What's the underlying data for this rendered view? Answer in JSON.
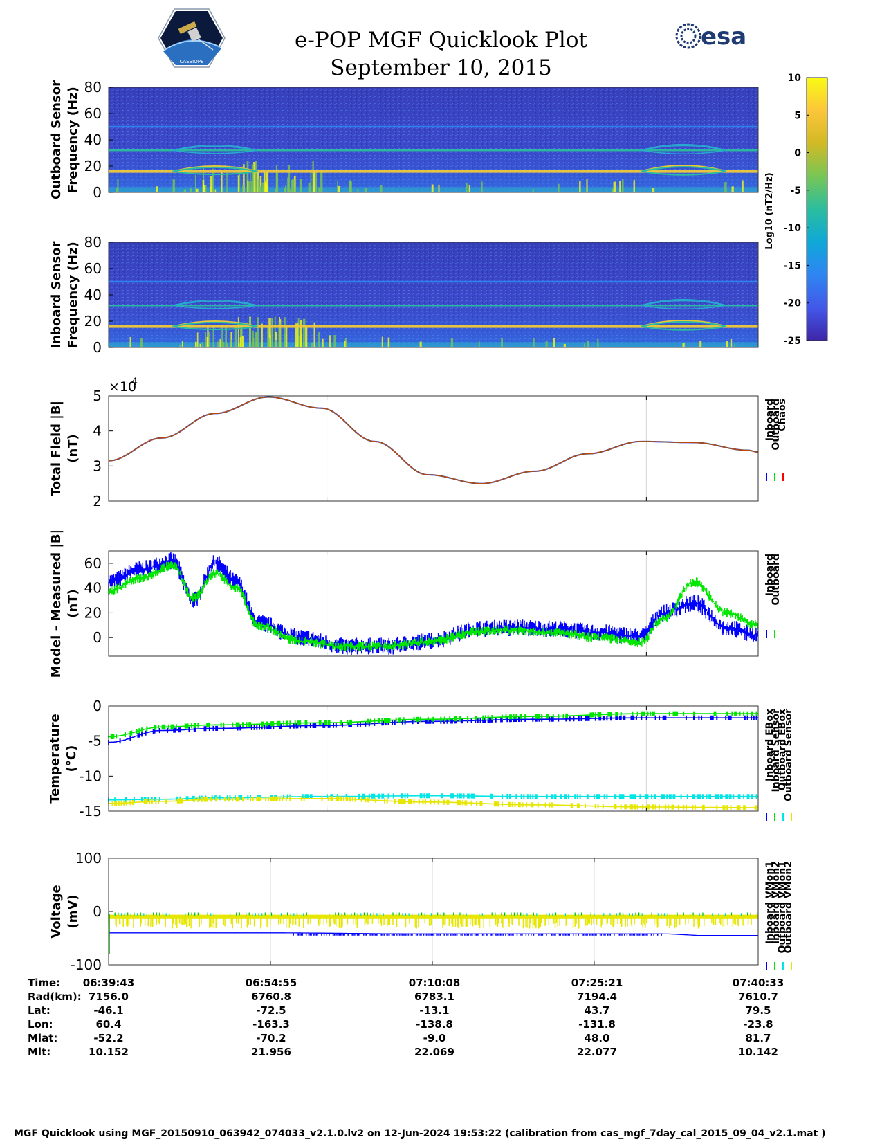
{
  "header": {
    "title": "e-POP MGF Quicklook Plot",
    "date": "September 10, 2015",
    "mission_logo_text": "CASSIOPE",
    "agency_logo_text": "esa"
  },
  "colorbar": {
    "label": "Log10 (nT2/Hz)",
    "ticks": [
      "10",
      "5",
      "0",
      "-5",
      "-10",
      "-15",
      "-20",
      "-25"
    ],
    "colormap": [
      "#3e26a8",
      "#4258e9",
      "#2f85f2",
      "#0fa8d8",
      "#2bbd9e",
      "#78c655",
      "#d1b925",
      "#fcc63a",
      "#f9fb14"
    ]
  },
  "chart_data": [
    {
      "type": "heatmap",
      "id": "outboard-spectrogram",
      "ylabel": "Outboard Sensor Frequency (Hz)",
      "ylim": [
        0,
        80
      ],
      "yticks": [
        "80",
        "60",
        "40",
        "20",
        "0"
      ],
      "zlim": [
        -25,
        10
      ],
      "bright_lines_hz": [
        16,
        32,
        50
      ]
    },
    {
      "type": "heatmap",
      "id": "inboard-spectrogram",
      "ylabel": "Inboard Sensor Frequency (Hz)",
      "ylim": [
        0,
        80
      ],
      "yticks": [
        "80",
        "60",
        "40",
        "20",
        "0"
      ],
      "zlim": [
        -25,
        10
      ],
      "bright_lines_hz": [
        16,
        32,
        50
      ]
    },
    {
      "type": "line",
      "id": "total-field",
      "ylabel": "Total Field |B| (nT)",
      "exponent": "×10",
      "exponent_power": "4",
      "ylim": [
        2,
        5
      ],
      "yticks": [
        "5",
        "4",
        "3",
        "2"
      ],
      "legend": [
        "Inboard",
        "Outboard",
        "Chaos"
      ],
      "legend_colors": [
        "#0000ff",
        "#00e600",
        "#ff0000"
      ],
      "x_minutes": [
        0,
        5,
        10,
        15,
        20,
        25,
        30,
        35,
        40,
        45,
        50,
        55,
        60,
        61
      ],
      "y": [
        3.15,
        3.8,
        4.5,
        4.97,
        4.65,
        3.7,
        2.75,
        2.5,
        2.85,
        3.35,
        3.7,
        3.67,
        3.45,
        3.4
      ]
    },
    {
      "type": "line",
      "id": "model-measured",
      "ylabel": "Model - Measured |B| (nT)",
      "ylim": [
        -15,
        70
      ],
      "yticks": [
        "60",
        "40",
        "20",
        "0"
      ],
      "legend": [
        "Inboard",
        "Outboard"
      ],
      "legend_colors": [
        "#0000ff",
        "#00e600"
      ],
      "x_minutes": [
        0,
        3,
        6,
        8,
        10,
        12,
        14,
        18,
        22,
        26,
        30,
        35,
        38,
        42,
        46,
        50,
        52,
        55,
        58,
        61
      ],
      "series": [
        {
          "name": "Inboard",
          "values": [
            45,
            55,
            62,
            30,
            60,
            45,
            12,
            0,
            -7,
            -7,
            -3,
            7,
            8,
            7,
            4,
            1,
            20,
            28,
            8,
            2
          ]
        },
        {
          "name": "Outboard",
          "values": [
            38,
            48,
            58,
            32,
            52,
            40,
            10,
            -3,
            -7,
            -7,
            -3,
            5,
            6,
            4,
            0,
            -4,
            15,
            45,
            20,
            10
          ]
        }
      ]
    },
    {
      "type": "line",
      "id": "temperature",
      "ylabel": "Temperature (°C)",
      "ylim": [
        -15,
        0
      ],
      "yticks": [
        "0",
        "-5",
        "-10",
        "-15"
      ],
      "legend": [
        "Inboard EBox",
        "Inboard Sensor",
        "Outboard EBox",
        "Outboard Sensor"
      ],
      "legend_colors": [
        "#0000ff",
        "#00e600",
        "#00e6e6",
        "#e6e600"
      ],
      "x_minutes": [
        0,
        5,
        10,
        20,
        30,
        40,
        50,
        61
      ],
      "series": [
        {
          "name": "Inboard EBox",
          "values": [
            -5.2,
            -3.5,
            -3.2,
            -2.8,
            -2.2,
            -1.9,
            -1.7,
            -1.7
          ]
        },
        {
          "name": "Inboard Sensor",
          "values": [
            -4.4,
            -3.0,
            -2.7,
            -2.4,
            -1.9,
            -1.5,
            -1.1,
            -1.1
          ]
        },
        {
          "name": "Outboard EBox",
          "values": [
            -13.4,
            -13.3,
            -13.1,
            -12.9,
            -12.8,
            -12.9,
            -12.9,
            -12.9
          ]
        },
        {
          "name": "Outboard Sensor",
          "values": [
            -13.9,
            -13.6,
            -13.3,
            -13.2,
            -13.7,
            -14.1,
            -14.4,
            -14.5
          ]
        }
      ]
    },
    {
      "type": "line",
      "id": "voltage",
      "ylabel": "Voltage (mV)",
      "ylim": [
        -100,
        100
      ],
      "yticks": [
        "100",
        "0",
        "-100"
      ],
      "legend": [
        "Inboard VMon1",
        "Inboard VMon2",
        "Outboard VMon1",
        "Outboard VMon2"
      ],
      "legend_colors": [
        "#0000ff",
        "#00e600",
        "#00e6e6",
        "#e6e600"
      ],
      "x_minutes": [
        0,
        15,
        30,
        45,
        52,
        56,
        61
      ],
      "series": [
        {
          "name": "Inboard VMon1",
          "values": [
            -40,
            -40,
            -42,
            -42,
            -42,
            -45,
            -45
          ]
        },
        {
          "name": "Inboard VMon2",
          "values": [
            -5,
            -5,
            -5,
            -5,
            -5,
            -5,
            -5
          ]
        },
        {
          "name": "Outboard VMon1",
          "values": [
            -6,
            -6,
            -6,
            -6,
            -6,
            -6,
            -6
          ]
        },
        {
          "name": "Outboard VMon2",
          "values": [
            -10,
            -10,
            -10,
            -10,
            -10,
            -10,
            -10
          ]
        }
      ]
    }
  ],
  "ephemeris": {
    "labels": [
      "Time:",
      "Rad(km):",
      "Lat:",
      "Lon:",
      "Mlat:",
      "Mlt:"
    ],
    "columns": [
      [
        "06:39:43",
        "7156.0",
        "-46.1",
        "60.4",
        "-52.2",
        "10.152"
      ],
      [
        "06:54:55",
        "6760.8",
        "-72.5",
        "-163.3",
        "-70.2",
        "21.956"
      ],
      [
        "07:10:08",
        "6783.1",
        "-13.1",
        "-138.8",
        "-9.0",
        "22.069"
      ],
      [
        "07:25:21",
        "7194.4",
        "43.7",
        "-131.8",
        "48.0",
        "22.077"
      ],
      [
        "07:40:33",
        "7610.7",
        "79.5",
        "-23.8",
        "81.7",
        "10.142"
      ]
    ]
  },
  "footer": "MGF Quicklook using MGF_20150910_063942_074033_v2.1.0.lv2 on 12-Jun-2024 19:53:22 (calibration from cas_mgf_7day_cal_2015_09_04_v2.1.mat )"
}
